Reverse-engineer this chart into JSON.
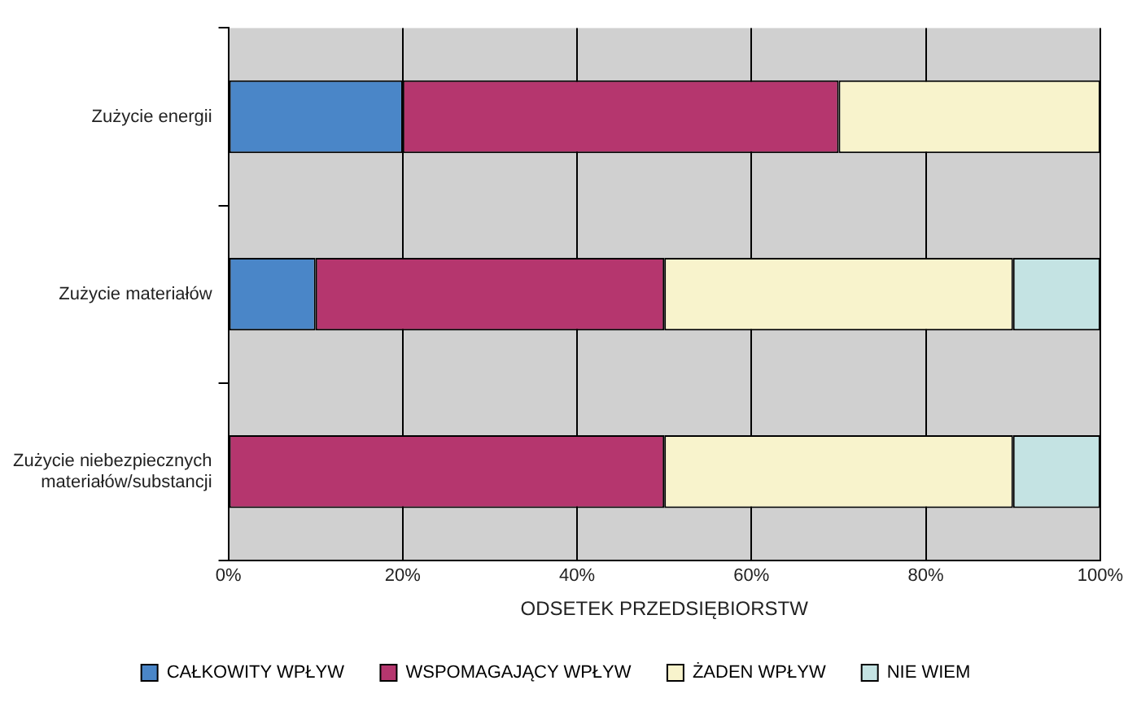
{
  "chart_data": {
    "type": "bar",
    "orientation": "horizontal",
    "stacked": true,
    "categories": [
      "Zużycie energii",
      "Zużycie materiałów",
      "Zużycie niebezpiecznych materiałów/substancji"
    ],
    "series": [
      {
        "name": "CAŁKOWITY WPŁYW",
        "color": "#4a86c8",
        "values": [
          20,
          10,
          0
        ]
      },
      {
        "name": "WSPOMAGAJĄCY WPŁYW",
        "color": "#b5366e",
        "values": [
          50,
          40,
          50
        ]
      },
      {
        "name": "ŻADEN WPŁYW",
        "color": "#f8f3cc",
        "values": [
          30,
          40,
          40
        ]
      },
      {
        "name": "NIE WIEM",
        "color": "#c4e3e3",
        "values": [
          0,
          10,
          10
        ]
      }
    ],
    "xlabel": "ODSETEK PRZEDSIĘBIORSTW",
    "xlim": [
      0,
      100
    ],
    "xticks": [
      {
        "value": 0,
        "label": "0%"
      },
      {
        "value": 20,
        "label": "20%"
      },
      {
        "value": 40,
        "label": "40%"
      },
      {
        "value": 60,
        "label": "60%"
      },
      {
        "value": 80,
        "label": "80%"
      },
      {
        "value": 100,
        "label": "100%"
      }
    ],
    "grid": "x",
    "legend": "bottom"
  }
}
